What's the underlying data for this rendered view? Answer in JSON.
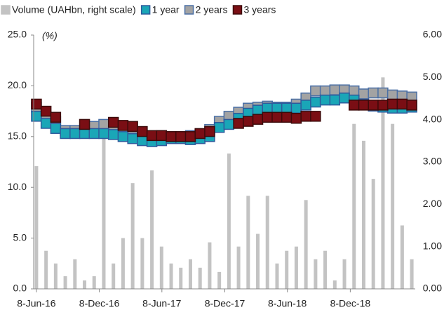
{
  "chart_data": {
    "type": "bar+scatter",
    "y_label": "(%)",
    "x": [
      "2016-06-08",
      "2016-07-06",
      "2016-08-03",
      "2016-08-31",
      "2016-09-28",
      "2016-10-26",
      "2016-11-23",
      "2016-12-21",
      "2017-01-18",
      "2017-02-15",
      "2017-03-15",
      "2017-04-12",
      "2017-05-10",
      "2017-06-07",
      "2017-07-05",
      "2017-08-02",
      "2017-08-30",
      "2017-09-27",
      "2017-10-25",
      "2017-11-22",
      "2017-12-20",
      "2018-01-17",
      "2018-02-14",
      "2018-03-14",
      "2018-04-11",
      "2018-05-09",
      "2018-06-06",
      "2018-07-04",
      "2018-08-01",
      "2018-08-29",
      "2018-09-26",
      "2018-10-24",
      "2018-11-21",
      "2018-12-19",
      "2019-01-16",
      "2019-02-13",
      "2019-03-13",
      "2019-04-10",
      "2019-05-08",
      "2019-06-05"
    ],
    "series": [
      {
        "name": "Volume (UAHbn, right scale)",
        "type": "bar",
        "axis": "y2",
        "color": "#c3c3c3",
        "values": [
          2.9,
          0.9,
          0.6,
          0.3,
          0.7,
          0.2,
          0.3,
          3.7,
          0.6,
          1.2,
          2.5,
          1.2,
          2.8,
          1.0,
          0.6,
          0.5,
          0.7,
          0.5,
          1.1,
          0.4,
          3.2,
          1.0,
          2.2,
          1.3,
          2.2,
          0.6,
          0.9,
          1.0,
          2.1,
          0.7,
          0.9,
          0.2,
          0.7,
          3.9,
          3.5,
          2.6,
          5.0,
          3.9,
          1.5,
          0.7
        ]
      },
      {
        "name": "1 year",
        "type": "scatter",
        "color": "#1aa6b7",
        "edge": "#2e5a9c",
        "values": [
          17.0,
          16.3,
          15.8,
          15.3,
          15.3,
          15.3,
          15.3,
          15.3,
          15.2,
          15.0,
          14.8,
          14.6,
          14.5,
          14.6,
          14.8,
          14.8,
          14.7,
          14.8,
          15.0,
          15.9,
          16.2,
          16.8,
          17.3,
          17.6,
          17.8,
          17.8,
          17.8,
          17.8,
          18.1,
          18.4,
          18.6,
          18.6,
          18.8,
          18.6,
          18.2,
          18.0,
          17.9,
          17.8,
          17.8,
          17.9
        ]
      },
      {
        "name": "2 years",
        "type": "scatter",
        "color": "#a3a3a3",
        "edge": "#4a6fa5",
        "values": [
          17.9,
          17.0,
          16.5,
          15.6,
          15.6,
          15.6,
          16.0,
          16.2,
          15.6,
          15.3,
          15.0,
          14.9,
          15.0,
          15.1,
          15.0,
          15.0,
          15.1,
          15.2,
          15.7,
          16.5,
          17.0,
          17.4,
          17.8,
          17.9,
          18.0,
          17.9,
          17.9,
          18.2,
          18.8,
          19.5,
          19.5,
          19.6,
          19.6,
          19.5,
          19.2,
          19.3,
          19.3,
          19.1,
          19.0,
          18.9
        ]
      },
      {
        "name": "3 years",
        "type": "scatter",
        "color": "#7a0e14",
        "edge": "#3c0a0a",
        "values": [
          18.2,
          17.5,
          16.9,
          null,
          null,
          16.2,
          null,
          null,
          16.4,
          16.1,
          16.0,
          15.5,
          15.1,
          15.1,
          15.0,
          15.0,
          15.0,
          15.3,
          15.5,
          null,
          null,
          16.3,
          16.5,
          16.7,
          16.9,
          16.9,
          16.9,
          16.8,
          17.0,
          17.0,
          null,
          null,
          null,
          18.1,
          18.1,
          18.1,
          18.1,
          18.2,
          18.2,
          18.1
        ]
      }
    ],
    "draw_order": [
      0,
      2,
      1,
      3
    ],
    "xlim": [
      "2016-05-31",
      "2019-06-15"
    ],
    "xticks": [
      {
        "value": "2016-06-08",
        "label": "8-Jun-16"
      },
      {
        "value": "2016-12-08",
        "label": "8-Dec-16"
      },
      {
        "value": "2017-06-08",
        "label": "8-Jun-17"
      },
      {
        "value": "2017-12-08",
        "label": "8-Dec-17"
      },
      {
        "value": "2018-06-08",
        "label": "8-Jun-18"
      },
      {
        "value": "2018-12-08",
        "label": "8-Dec-18"
      }
    ],
    "ylim": [
      0,
      25
    ],
    "yticks": [
      {
        "value": 0,
        "label": "0.0"
      },
      {
        "value": 5,
        "label": "5.0"
      },
      {
        "value": 10,
        "label": "10.0"
      },
      {
        "value": 15,
        "label": "15.0"
      },
      {
        "value": 20,
        "label": "20.0"
      },
      {
        "value": 25,
        "label": "25.0"
      }
    ],
    "y2lim": [
      0,
      6
    ],
    "y2ticks": [
      {
        "value": 0,
        "label": "0.00"
      },
      {
        "value": 1,
        "label": "1.00"
      },
      {
        "value": 2,
        "label": "2.00"
      },
      {
        "value": 3,
        "label": "3.00"
      },
      {
        "value": 4,
        "label": "4.00"
      },
      {
        "value": 5,
        "label": "5.00"
      },
      {
        "value": 6,
        "label": "6.00"
      }
    ],
    "legend": "top-left",
    "grid": false
  }
}
